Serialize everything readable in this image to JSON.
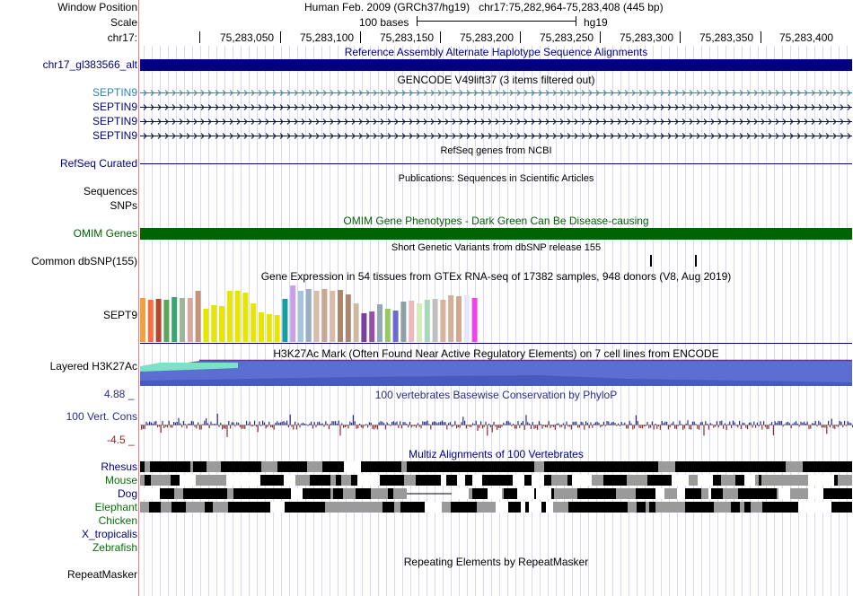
{
  "header": {
    "window_position_label": "Window Position",
    "scale_label": "Scale",
    "chrom_label": "chr17:",
    "position_text": "Human Feb. 2009 (GRCh37/hg19)   chr17:75,282,964-75,283,408 (445 bp)",
    "scale_text": "100 bases",
    "assembly": "hg19",
    "ticks": [
      "75,283,050",
      "75,283,100",
      "75,283,150",
      "75,283,200",
      "75,283,250",
      "75,283,300",
      "75,283,350",
      "75,283,400"
    ]
  },
  "tracks": {
    "alt_haplotype": {
      "title": "Reference Assembly Alternate Haplotype Sequence Alignments",
      "label": "chr17_gl383566_alt"
    },
    "gencode": {
      "title": "GENCODE V49lift37 (3 items filtered out)",
      "items": [
        "SEPTIN9",
        "SEPTIN9",
        "SEPTIN9",
        "SEPTIN9"
      ]
    },
    "refseq": {
      "title": "RefSeq genes from NCBI",
      "label": "RefSeq Curated"
    },
    "publications": {
      "title": "Publications: Sequences in Scientific Articles",
      "label_sequences": "Sequences",
      "label_snps": "SNPs"
    },
    "omim": {
      "title": "OMIM Gene Phenotypes - Dark Green Can Be Disease-causing",
      "label": "OMIM Genes"
    },
    "dbsnp": {
      "title": "Short Genetic Variants from dbSNP release 155",
      "label": "Common dbSNP(155)"
    },
    "gtex": {
      "title": "Gene Expression in 54 tissues from GTEx RNA-seq of 17382 samples, 948 donors (V8, Aug 2019)",
      "label": "SEPT9"
    },
    "h3k27ac": {
      "title": "H3K27Ac Mark (Often Found Near Active Regulatory Elements) on 7 cell lines from ENCODE",
      "label": "Layered H3K27Ac"
    },
    "phylop": {
      "title": "100 vertebrates Basewise Conservation by PhyloP",
      "label": "100 Vert. Cons",
      "max": "4.88 _",
      "min": "-4.5 _"
    },
    "multiz": {
      "title": "Multiz Alignments of 100 Vertebrates",
      "species": [
        "Rhesus",
        "Mouse",
        "Dog",
        "Elephant",
        "Chicken",
        "X_tropicalis",
        "Zebrafish"
      ]
    },
    "repeatmasker": {
      "title": "Repeating Elements by RepeatMasker",
      "label": "RepeatMasker"
    }
  },
  "colors": {
    "navy": "#000080",
    "omim_green": "#006400",
    "label_green": "#0a6e0a",
    "gencode_teal": "#2b83ba",
    "phylop_pos": "#2a2a8c",
    "phylop_neg": "#8b2a2a",
    "h3k27ac_blue": "#5b6fd1",
    "grid_line": "#d8d8f0",
    "divider": "#e57f7f"
  },
  "gtex_bar_colors": [
    "#f0a040",
    "#ff6b3b",
    "#b8462e",
    "#5fa65a",
    "#35a96b",
    "#a0b49c",
    "#d9a9a0",
    "#c49478",
    "#e6e600",
    "#e6e600",
    "#e6e600",
    "#e6e600",
    "#e6e600",
    "#e6e600",
    "#e6e600",
    "#e6e600",
    "#e6e600",
    "#e6e600",
    "#14a0a0",
    "#c8a0e8",
    "#a4c4e0",
    "#9ab0c0",
    "#d8bca8",
    "#c9a890",
    "#d8bca8",
    "#a88868",
    "#aa8870",
    "#ccbba0",
    "#7b3fa0",
    "#9650a8",
    "#94a9b8",
    "#9ac860",
    "#6a6ad0",
    "#8f9fa8",
    "#f0b8b8",
    "#d4ecbc",
    "#a8d8b8",
    "#c0c0c0",
    "#d8b498",
    "#d4b098",
    "#d0aa90",
    "#e6e6ff",
    "#ee44ee"
  ],
  "gtex_bar_values": [
    0.82,
    0.78,
    0.8,
    0.78,
    0.83,
    0.82,
    0.82,
    0.95,
    0.62,
    0.68,
    0.67,
    0.95,
    0.95,
    0.91,
    0.72,
    0.55,
    0.52,
    0.5,
    0.8,
    1.05,
    0.95,
    0.98,
    0.95,
    0.99,
    0.95,
    0.97,
    0.88,
    0.72,
    0.53,
    0.56,
    0.7,
    0.62,
    0.58,
    0.75,
    0.77,
    0.72,
    0.78,
    0.8,
    0.78,
    0.86,
    0.85,
    0.87,
    0.82
  ]
}
